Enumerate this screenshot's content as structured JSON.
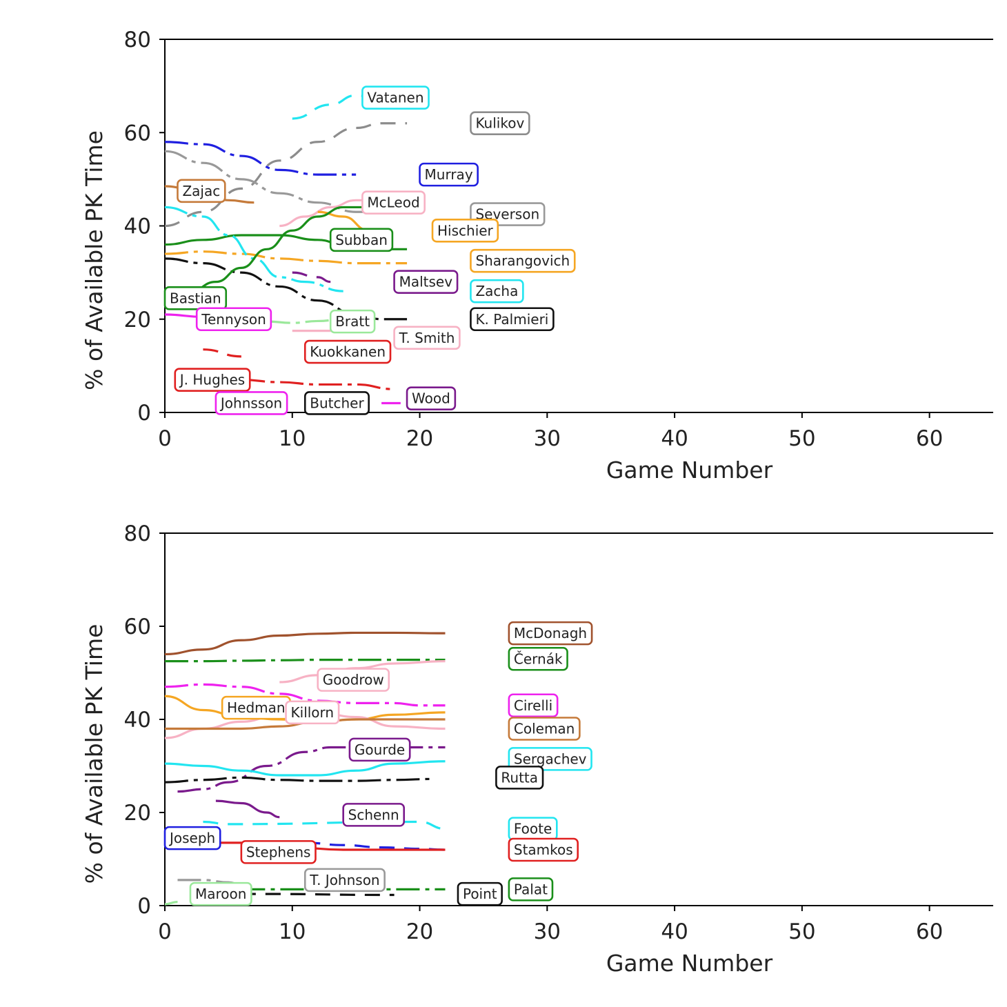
{
  "chart_data": [
    {
      "type": "line",
      "xlabel": "Game Number",
      "ylabel": "% of Available PK Time",
      "xlim": [
        0,
        65
      ],
      "ylim": [
        0,
        80
      ],
      "xticks": [
        0,
        10,
        20,
        30,
        40,
        50,
        60
      ],
      "yticks": [
        0,
        20,
        40,
        60,
        80
      ],
      "grid": false,
      "series": [
        {
          "name": "Vatanen",
          "color": "#22e5f0",
          "dash": "long",
          "x": [
            10,
            13,
            15,
            17,
            19
          ],
          "y": [
            63,
            66,
            68,
            67,
            65
          ]
        },
        {
          "name": "Kulikov",
          "color": "#8c8c8c",
          "dash": "long",
          "x": [
            0,
            3,
            6,
            9,
            12,
            15,
            17,
            19
          ],
          "y": [
            40,
            43,
            48,
            54,
            58,
            61,
            62,
            62
          ]
        },
        {
          "name": "Murray",
          "color": "#1f1fe0",
          "dash": "mixed",
          "x": [
            0,
            3,
            6,
            9,
            12,
            15
          ],
          "y": [
            58,
            57.5,
            55,
            52,
            51,
            51
          ]
        },
        {
          "name": "Severson",
          "color": "#999999",
          "dash": "mixed",
          "x": [
            0,
            3,
            6,
            9,
            12,
            15,
            19
          ],
          "y": [
            56,
            53.5,
            50,
            47,
            45,
            43,
            43
          ]
        },
        {
          "name": "Zajac",
          "color": "#c57a3a",
          "dash": "solid",
          "x": [
            0,
            3,
            5,
            7
          ],
          "y": [
            48.5,
            47,
            45.5,
            45
          ]
        },
        {
          "name": "McLeod",
          "color": "#f7b2c4",
          "dash": "solid",
          "x": [
            9,
            11,
            13,
            15,
            17,
            19
          ],
          "y": [
            40,
            42,
            44,
            45.5,
            45.5,
            45
          ]
        },
        {
          "name": "Hischier",
          "color": "#f5a623",
          "dash": "solid",
          "x": [
            12,
            14,
            16
          ],
          "y": [
            43,
            42,
            39
          ]
        },
        {
          "name": "Subban",
          "color": "#1a8f1a",
          "dash": "solid",
          "x": [
            0,
            3,
            6,
            9,
            12,
            14,
            16,
            19
          ],
          "y": [
            36,
            37,
            38,
            38,
            37,
            36,
            35,
            35
          ]
        },
        {
          "name": "Sharangovich",
          "color": "#f5a623",
          "dash": "mixed",
          "x": [
            0,
            3,
            6,
            9,
            12,
            15,
            19
          ],
          "y": [
            34,
            34.5,
            34,
            33,
            32.5,
            32,
            32
          ]
        },
        {
          "name": "Zacha",
          "color": "#22e5f0",
          "dash": "mixed",
          "x": [
            0,
            3,
            5,
            7,
            9,
            11,
            14
          ],
          "y": [
            44,
            42,
            38,
            33,
            29,
            28,
            26
          ]
        },
        {
          "name": "Maltsev",
          "color": "#7a1a8c",
          "dash": "long",
          "x": [
            10,
            12,
            13
          ],
          "y": [
            30,
            29,
            28
          ]
        },
        {
          "name": "K. Palmieri",
          "color": "#111111",
          "dash": "mixed",
          "x": [
            0,
            3,
            6,
            9,
            12,
            15,
            17,
            19
          ],
          "y": [
            33,
            32,
            30,
            27,
            24,
            21,
            20,
            20
          ]
        },
        {
          "name": "Bastian",
          "color": "#1a8f1a",
          "dash": "solid",
          "x": [
            2,
            4,
            6,
            8,
            10,
            12,
            14,
            16,
            19
          ],
          "y": [
            26,
            28,
            31,
            35,
            39,
            42,
            44,
            44,
            44
          ]
        },
        {
          "name": "Tennyson",
          "color": "#ee22ee",
          "dash": "solid",
          "x": [
            0,
            3,
            6,
            8
          ],
          "y": [
            21,
            20.5,
            20,
            19
          ]
        },
        {
          "name": "Bratt",
          "color": "#9be89b",
          "dash": "mixed",
          "x": [
            8,
            10,
            12,
            14
          ],
          "y": [
            19.5,
            19.2,
            19.6,
            20
          ]
        },
        {
          "name": "T. Smith",
          "color": "#f7b2c4",
          "dash": "solid",
          "x": [
            10,
            12,
            14
          ],
          "y": [
            17.5,
            17.5,
            17.5
          ]
        },
        {
          "name": "Kuokkanen",
          "color": "#e02020",
          "dash": "long",
          "x": [
            3,
            6
          ],
          "y": [
            13.5,
            12
          ]
        },
        {
          "name": "J. Hughes",
          "color": "#e02020",
          "dash": "mixed",
          "x": [
            3,
            6,
            9,
            12,
            15,
            18
          ],
          "y": [
            7.5,
            7,
            6.5,
            6,
            6,
            5
          ]
        },
        {
          "name": "Wood",
          "color": "#ee22ee",
          "dash": "solid",
          "x": [
            17,
            18.5
          ],
          "y": [
            2,
            2
          ]
        },
        {
          "name": "Butcher",
          "color": "#111111",
          "dash": "solid",
          "x": [
            15,
            16
          ],
          "y": [
            2,
            2
          ]
        }
      ]
    },
    {
      "type": "line",
      "xlabel": "Game Number",
      "ylabel": "% of Available PK Time",
      "xlim": [
        0,
        65
      ],
      "ylim": [
        0,
        80
      ],
      "xticks": [
        0,
        10,
        20,
        30,
        40,
        50,
        60
      ],
      "yticks": [
        0,
        20,
        40,
        60,
        80
      ],
      "grid": false,
      "series": [
        {
          "name": "McDonagh",
          "color": "#a0522d",
          "dash": "solid",
          "x": [
            0,
            3,
            6,
            9,
            12,
            15,
            18,
            22
          ],
          "y": [
            54,
            55,
            57,
            58,
            58.4,
            58.6,
            58.6,
            58.5
          ]
        },
        {
          "name": "Černák",
          "color": "#1a8f1a",
          "dash": "mixed",
          "x": [
            0,
            3,
            6,
            9,
            12,
            15,
            18,
            22
          ],
          "y": [
            52.5,
            52.5,
            52.6,
            52.7,
            52.8,
            52.8,
            52.8,
            52.8
          ]
        },
        {
          "name": "Goodrow",
          "color": "#f7b2c4",
          "dash": "solid",
          "x": [
            9,
            12,
            15,
            18,
            22
          ],
          "y": [
            48,
            49.5,
            51,
            52,
            52.5
          ]
        },
        {
          "name": "Cirelli",
          "color": "#ee22ee",
          "dash": "mixed",
          "x": [
            0,
            3,
            6,
            9,
            12,
            15,
            18,
            20,
            22
          ],
          "y": [
            47,
            47.5,
            47,
            45.5,
            44,
            43.5,
            43.5,
            43,
            43
          ]
        },
        {
          "name": "Hedman",
          "color": "#f5a623",
          "dash": "solid",
          "x": [
            0,
            3,
            6,
            9,
            12,
            15,
            18,
            22
          ],
          "y": [
            45,
            42,
            40.5,
            40,
            39.5,
            40,
            41,
            41.5
          ]
        },
        {
          "name": "Killorn",
          "color": "#f7b2c4",
          "dash": "solid",
          "x": [
            0,
            3,
            6,
            9,
            12,
            15,
            18,
            22
          ],
          "y": [
            36,
            38,
            39.5,
            41,
            41.5,
            40.5,
            38.5,
            38
          ]
        },
        {
          "name": "Coleman",
          "color": "#c57a3a",
          "dash": "solid",
          "x": [
            0,
            3,
            6,
            9,
            12,
            15,
            18,
            22
          ],
          "y": [
            38,
            38,
            38,
            38.5,
            39.5,
            40,
            40,
            40
          ]
        },
        {
          "name": "Gourde",
          "color": "#7a1a8c",
          "dash": "mixed",
          "x": [
            1,
            3,
            5,
            8,
            11,
            13,
            16,
            19,
            22
          ],
          "y": [
            24.5,
            25,
            26.5,
            30,
            33,
            34,
            34,
            34,
            34
          ]
        },
        {
          "name": "Sergachev",
          "color": "#22e5f0",
          "dash": "solid",
          "x": [
            0,
            3,
            6,
            9,
            12,
            15,
            18,
            22
          ],
          "y": [
            30.5,
            30,
            29,
            28,
            28,
            29,
            30.5,
            31
          ]
        },
        {
          "name": "Rutta",
          "color": "#111111",
          "dash": "mixed",
          "x": [
            0,
            3,
            6,
            9,
            12,
            15,
            18,
            21
          ],
          "y": [
            26.5,
            27,
            27.5,
            27,
            26.8,
            26.8,
            27,
            27.2
          ]
        },
        {
          "name": "Schenn",
          "color": "#7a1a8c",
          "dash": "solid",
          "x": [
            4,
            6,
            8,
            9
          ],
          "y": [
            22.5,
            22,
            20,
            19
          ]
        },
        {
          "name": "Foote",
          "color": "#22e5f0",
          "dash": "long",
          "x": [
            3,
            5,
            20,
            22
          ],
          "y": [
            18,
            17.5,
            18,
            16.5
          ]
        },
        {
          "name": "Joseph",
          "color": "#1f1fe0",
          "dash": "long",
          "x": [
            11,
            14,
            17,
            20,
            22
          ],
          "y": [
            13.5,
            13,
            12.5,
            12.2,
            12
          ]
        },
        {
          "name": "Stamkos",
          "color": "#e02020",
          "dash": "solid",
          "x": [
            2,
            6,
            10,
            14,
            18,
            22
          ],
          "y": [
            13.5,
            13.5,
            12.5,
            12,
            12,
            12
          ]
        },
        {
          "name": "T. Johnson",
          "color": "#999999",
          "dash": "mixed",
          "x": [
            1,
            3,
            5,
            6
          ],
          "y": [
            5.5,
            5.5,
            5,
            4.5
          ]
        },
        {
          "name": "Palat",
          "color": "#1a8f1a",
          "dash": "mixed",
          "x": [
            3,
            5,
            8,
            20,
            22
          ],
          "y": [
            3.5,
            3.5,
            3.5,
            3.5,
            3.5
          ]
        },
        {
          "name": "Maroon",
          "color": "#9be89b",
          "dash": "solid",
          "x": [
            0,
            1
          ],
          "y": [
            0.3,
            0.8
          ]
        },
        {
          "name": "Point",
          "color": "#111111",
          "dash": "long",
          "x": [
            4,
            8,
            17,
            18
          ],
          "y": [
            2.5,
            2.5,
            2.3,
            2.3
          ]
        }
      ]
    }
  ],
  "labels": [
    [
      {
        "text": "Vatanen",
        "color": "#22e5f0",
        "x": 15.5,
        "y": 67.5
      },
      {
        "text": "Kulikov",
        "color": "#8c8c8c",
        "x": 24,
        "y": 62
      },
      {
        "text": "Murray",
        "color": "#1f1fe0",
        "x": 20,
        "y": 51
      },
      {
        "text": "Zajac",
        "color": "#c57a3a",
        "x": 1,
        "y": 47.5
      },
      {
        "text": "McLeod",
        "color": "#f7b2c4",
        "x": 15.5,
        "y": 45
      },
      {
        "text": "Severson",
        "color": "#999999",
        "x": 24,
        "y": 42.5
      },
      {
        "text": "Hischier",
        "color": "#f5a623",
        "x": 21,
        "y": 39
      },
      {
        "text": "Subban",
        "color": "#1a8f1a",
        "x": 13,
        "y": 37
      },
      {
        "text": "Sharangovich",
        "color": "#f5a623",
        "x": 24,
        "y": 32.5
      },
      {
        "text": "Maltsev",
        "color": "#7a1a8c",
        "x": 18,
        "y": 28
      },
      {
        "text": "Zacha",
        "color": "#22e5f0",
        "x": 24,
        "y": 26
      },
      {
        "text": "Bastian",
        "color": "#1a8f1a",
        "x": 0,
        "y": 24.5
      },
      {
        "text": "Tennyson",
        "color": "#ee22ee",
        "x": 2.5,
        "y": 20
      },
      {
        "text": "Bratt",
        "color": "#9be89b",
        "x": 13,
        "y": 19.5
      },
      {
        "text": "K. Palmieri",
        "color": "#111111",
        "x": 24,
        "y": 20
      },
      {
        "text": "T. Smith",
        "color": "#f7b2c4",
        "x": 18,
        "y": 16
      },
      {
        "text": "Kuokkanen",
        "color": "#e02020",
        "x": 11,
        "y": 13
      },
      {
        "text": "J. Hughes",
        "color": "#e02020",
        "x": 0.8,
        "y": 7
      },
      {
        "text": "Johnsson",
        "color": "#ee22ee",
        "x": 4,
        "y": 2
      },
      {
        "text": "Butcher",
        "color": "#111111",
        "x": 11,
        "y": 2
      },
      {
        "text": "Wood",
        "color": "#7a1a8c",
        "x": 19,
        "y": 3
      }
    ],
    [
      {
        "text": "McDonagh",
        "color": "#a0522d",
        "x": 27,
        "y": 58.5
      },
      {
        "text": "Černák",
        "color": "#1a8f1a",
        "x": 27,
        "y": 53
      },
      {
        "text": "Goodrow",
        "color": "#f7b2c4",
        "x": 12,
        "y": 48.5
      },
      {
        "text": "Cirelli",
        "color": "#ee22ee",
        "x": 27,
        "y": 43
      },
      {
        "text": "Hedman",
        "color": "#f5a623",
        "x": 4.5,
        "y": 42.5
      },
      {
        "text": "Killorn",
        "color": "#f7b2c4",
        "x": 9.5,
        "y": 41.5
      },
      {
        "text": "Coleman",
        "color": "#c57a3a",
        "x": 27,
        "y": 38
      },
      {
        "text": "Gourde",
        "color": "#7a1a8c",
        "x": 14.5,
        "y": 33.5
      },
      {
        "text": "Sergachev",
        "color": "#22e5f0",
        "x": 27,
        "y": 31.5
      },
      {
        "text": "Rutta",
        "color": "#111111",
        "x": 26,
        "y": 27.5
      },
      {
        "text": "Schenn",
        "color": "#7a1a8c",
        "x": 14,
        "y": 19.5
      },
      {
        "text": "Foote",
        "color": "#22e5f0",
        "x": 27,
        "y": 16.5
      },
      {
        "text": "Joseph",
        "color": "#1f1fe0",
        "x": 0,
        "y": 14.5
      },
      {
        "text": "Stamkos",
        "color": "#e02020",
        "x": 27,
        "y": 12
      },
      {
        "text": "Stephens",
        "color": "#e02020",
        "x": 6,
        "y": 11.5
      },
      {
        "text": "T. Johnson",
        "color": "#999999",
        "x": 11,
        "y": 5.5
      },
      {
        "text": "Palat",
        "color": "#1a8f1a",
        "x": 27,
        "y": 3.5
      },
      {
        "text": "Maroon",
        "color": "#9be89b",
        "x": 2,
        "y": 2.5
      },
      {
        "text": "Point",
        "color": "#111111",
        "x": 23,
        "y": 2.5
      }
    ]
  ]
}
